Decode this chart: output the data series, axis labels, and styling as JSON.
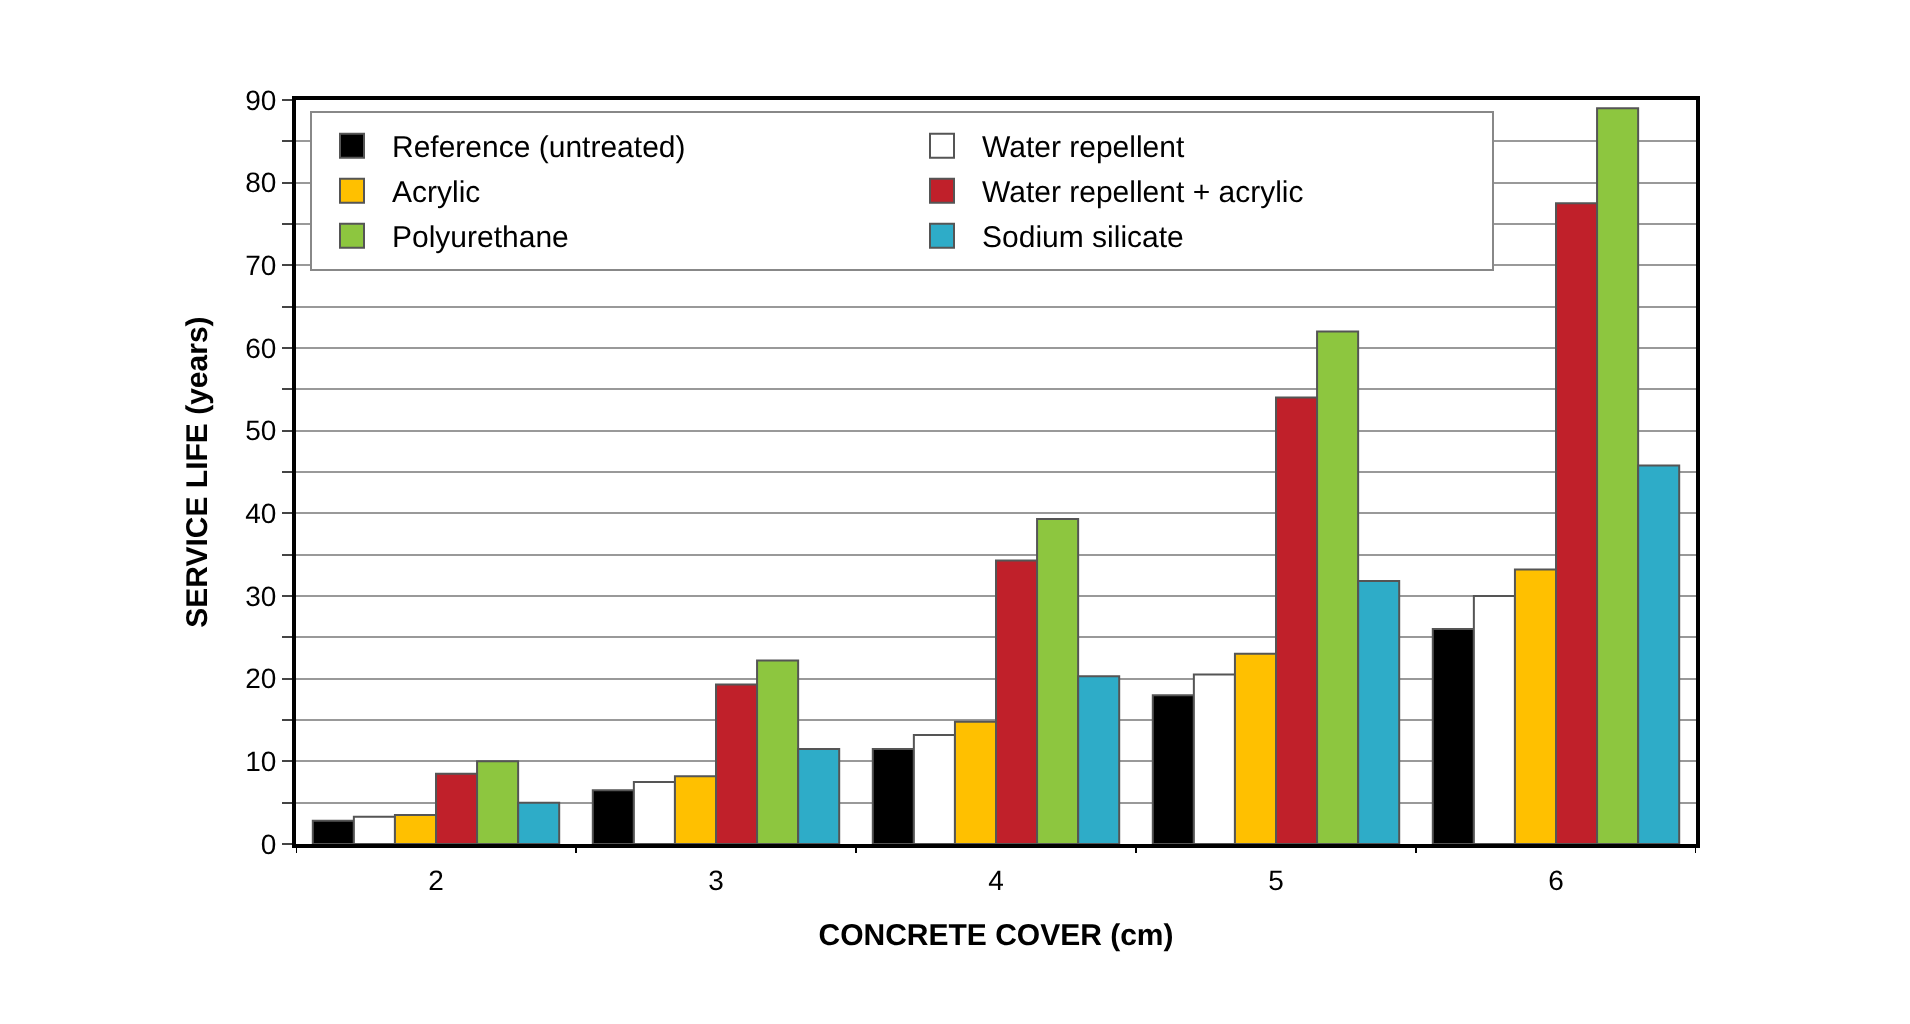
{
  "chart_data": {
    "type": "bar",
    "xlabel": "CONCRETE COVER (cm)",
    "ylabel": "SERVICE LIFE (years)",
    "categories": [
      "2",
      "3",
      "4",
      "5",
      "6"
    ],
    "series": [
      {
        "name": "Reference (untreated)",
        "color": "#000000",
        "values": [
          2.8,
          6.5,
          11.5,
          18,
          26
        ]
      },
      {
        "name": "Water repellent",
        "color": "#ffffff",
        "values": [
          3.3,
          7.5,
          13.2,
          20.5,
          30
        ]
      },
      {
        "name": "Acrylic",
        "color": "#ffc000",
        "values": [
          3.5,
          8.2,
          14.8,
          23,
          33.2
        ]
      },
      {
        "name": "Water repellent + acrylic",
        "color": "#c0202a",
        "values": [
          8.5,
          19.3,
          34.3,
          54,
          77.5
        ]
      },
      {
        "name": "Polyurethane",
        "color": "#8dc63f",
        "values": [
          10,
          22.2,
          39.3,
          62,
          89
        ]
      },
      {
        "name": "Sodium silicate",
        "color": "#2eacc8",
        "values": [
          5,
          11.5,
          20.3,
          31.8,
          45.8
        ]
      }
    ],
    "ylim": [
      0,
      90
    ],
    "yticks": [
      0,
      {
        "value": 5,
        "label": null
      },
      10,
      {
        "value": 15,
        "label": null
      },
      20,
      {
        "value": 25,
        "label": null
      },
      30,
      {
        "value": 35,
        "label": null
      },
      40,
      {
        "value": 45,
        "label": null
      },
      50,
      {
        "value": 55,
        "label": null
      },
      60,
      {
        "value": 65,
        "label": null
      },
      70,
      {
        "value": 75,
        "label": null
      },
      80,
      {
        "value": 85,
        "label": null
      },
      90
    ],
    "grid": "y",
    "legend": "top left"
  }
}
